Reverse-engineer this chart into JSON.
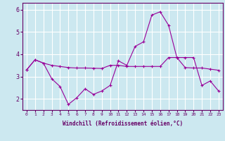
{
  "xlabel": "Windchill (Refroidissement éolien,°C)",
  "x": [
    0,
    1,
    2,
    3,
    4,
    5,
    6,
    7,
    8,
    9,
    10,
    11,
    12,
    13,
    14,
    15,
    16,
    17,
    18,
    19,
    20,
    21,
    22,
    23
  ],
  "line1": [
    3.3,
    3.75,
    3.6,
    3.5,
    3.45,
    3.4,
    3.38,
    3.38,
    3.37,
    3.36,
    3.5,
    3.5,
    3.45,
    3.45,
    3.45,
    3.45,
    3.45,
    3.85,
    3.85,
    3.4,
    3.38,
    3.38,
    3.33,
    3.28
  ],
  "line2": [
    3.3,
    3.75,
    3.6,
    2.9,
    2.55,
    1.75,
    2.05,
    2.45,
    2.2,
    2.35,
    2.6,
    3.7,
    3.5,
    4.35,
    4.55,
    5.75,
    5.9,
    5.3,
    3.85,
    3.85,
    3.85,
    2.6,
    2.8,
    2.35
  ],
  "line_color": "#990099",
  "bg_color": "#cce8f0",
  "grid_color": "#ffffff",
  "ylim": [
    1.5,
    6.3
  ],
  "yticks": [
    2,
    3,
    4,
    5,
    6
  ],
  "xtick_labels": [
    "0",
    "1",
    "2",
    "3",
    "4",
    "5",
    "6",
    "7",
    "8",
    "9",
    "10",
    "11",
    "12",
    "13",
    "14",
    "15",
    "16",
    "17",
    "18",
    "19",
    "20",
    "21",
    "22",
    "23"
  ]
}
